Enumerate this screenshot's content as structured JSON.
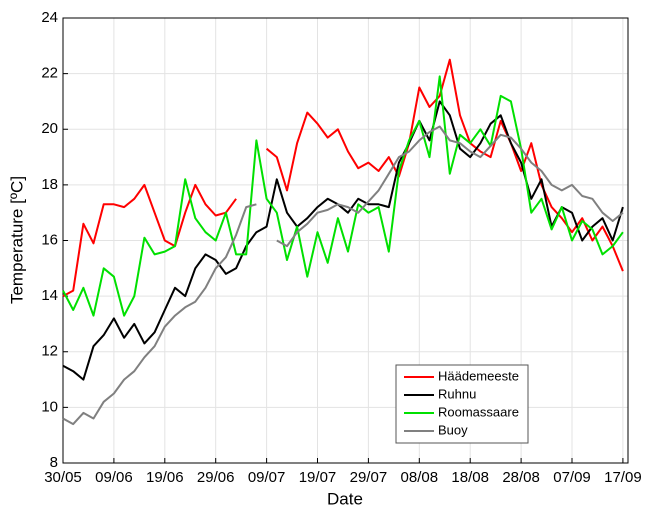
{
  "chart_data": {
    "type": "line",
    "xlabel": "Date",
    "ylabel": "Temperature [ºC]",
    "x": [
      "30/05",
      "01/06",
      "03/06",
      "05/06",
      "07/06",
      "09/06",
      "11/06",
      "13/06",
      "15/06",
      "17/06",
      "19/06",
      "21/06",
      "23/06",
      "25/06",
      "27/06",
      "29/06",
      "01/07",
      "03/07",
      "05/07",
      "07/07",
      "09/07",
      "11/07",
      "13/07",
      "15/07",
      "17/07",
      "19/07",
      "21/07",
      "23/07",
      "25/07",
      "27/07",
      "29/07",
      "31/07",
      "02/08",
      "04/08",
      "06/08",
      "08/08",
      "10/08",
      "12/08",
      "14/08",
      "16/08",
      "18/08",
      "20/08",
      "22/08",
      "24/08",
      "26/08",
      "28/08",
      "30/08",
      "01/09",
      "03/09",
      "05/09",
      "07/09",
      "09/09",
      "11/09",
      "13/09",
      "15/09",
      "17/09"
    ],
    "series": [
      {
        "name": "Häädemeeste",
        "color": "#ff0000",
        "values": [
          14.0,
          14.2,
          16.6,
          15.9,
          17.3,
          17.3,
          17.2,
          17.5,
          18.0,
          17.0,
          16.0,
          15.8,
          17.0,
          18.0,
          17.3,
          16.9,
          17.0,
          17.5,
          null,
          null,
          19.3,
          19.0,
          17.8,
          19.5,
          20.6,
          20.2,
          19.7,
          20.0,
          19.2,
          18.6,
          18.8,
          18.5,
          19.0,
          18.3,
          19.5,
          21.5,
          20.8,
          21.2,
          22.5,
          20.5,
          19.5,
          19.2,
          19.0,
          20.3,
          19.5,
          18.5,
          19.5,
          18.0,
          17.2,
          16.8,
          16.3,
          16.8,
          16.0,
          16.5,
          15.8,
          14.9
        ]
      },
      {
        "name": "Ruhnu",
        "color": "#000000",
        "values": [
          11.5,
          11.3,
          11.0,
          12.2,
          12.6,
          13.2,
          12.5,
          13.0,
          12.3,
          12.7,
          13.5,
          14.3,
          14.0,
          15.0,
          15.5,
          15.3,
          14.8,
          15.0,
          15.8,
          16.3,
          16.5,
          18.2,
          17.0,
          16.5,
          16.8,
          17.2,
          17.5,
          17.3,
          17.0,
          17.5,
          17.3,
          17.3,
          17.2,
          18.8,
          19.5,
          20.3,
          19.6,
          21.0,
          20.5,
          19.3,
          19.0,
          19.5,
          20.2,
          20.5,
          19.5,
          18.8,
          17.5,
          18.2,
          16.5,
          17.2,
          17.0,
          16.0,
          16.5,
          16.8,
          16.0,
          17.2
        ]
      },
      {
        "name": "Roomassaare",
        "color": "#00e000",
        "values": [
          14.2,
          13.5,
          14.3,
          13.3,
          15.0,
          14.7,
          13.3,
          14.0,
          16.1,
          15.5,
          15.6,
          15.8,
          18.2,
          16.8,
          16.3,
          16.0,
          17.0,
          15.5,
          15.5,
          19.6,
          17.5,
          17.0,
          15.3,
          16.5,
          14.7,
          16.3,
          15.2,
          16.8,
          15.6,
          17.3,
          17.0,
          17.2,
          15.6,
          18.5,
          19.6,
          20.3,
          19.0,
          21.9,
          18.4,
          19.8,
          19.5,
          20.0,
          19.4,
          21.2,
          21.0,
          19.3,
          17.0,
          17.5,
          16.4,
          17.2,
          16.0,
          16.7,
          16.4,
          15.5,
          15.8,
          16.3
        ]
      },
      {
        "name": "Buoy",
        "color": "#808080",
        "values": [
          9.6,
          9.4,
          9.8,
          9.6,
          10.2,
          10.5,
          11.0,
          11.3,
          11.8,
          12.2,
          12.9,
          13.3,
          13.6,
          13.8,
          14.3,
          15.0,
          15.4,
          16.2,
          17.2,
          17.3,
          null,
          16.0,
          15.8,
          16.3,
          16.6,
          17.0,
          17.1,
          17.3,
          17.2,
          17.0,
          17.4,
          17.8,
          18.4,
          19.0,
          19.2,
          19.6,
          19.9,
          20.1,
          19.6,
          19.5,
          19.2,
          19.0,
          19.4,
          19.8,
          19.7,
          19.3,
          18.8,
          18.5,
          18.0,
          17.8,
          18.0,
          17.6,
          17.5,
          17.0,
          16.7,
          17.0
        ]
      }
    ],
    "xlim": [
      "30/05",
      "18/09"
    ],
    "xticks": [
      "30/05",
      "09/06",
      "19/06",
      "29/06",
      "09/07",
      "19/07",
      "29/07",
      "08/08",
      "18/08",
      "28/08",
      "07/09",
      "17/09"
    ],
    "ylim": [
      8,
      24
    ],
    "yticks": [
      8,
      10,
      12,
      14,
      16,
      18,
      20,
      22,
      24
    ],
    "grid": true,
    "legend": "lower right"
  }
}
